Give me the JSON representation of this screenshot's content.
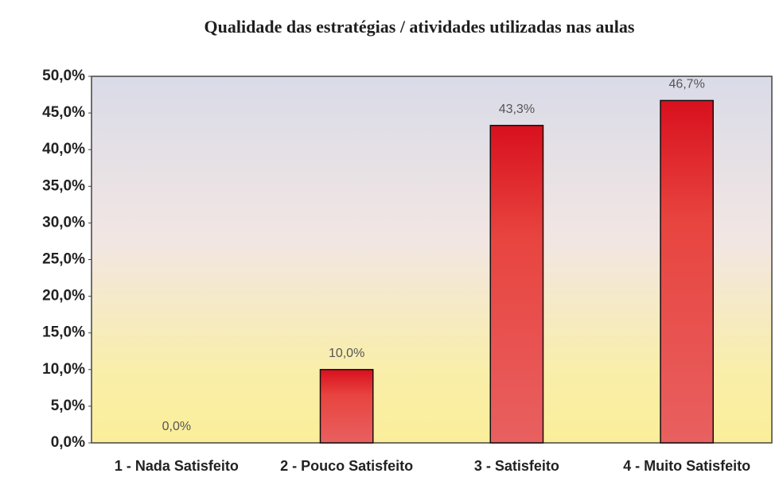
{
  "chart_data": {
    "type": "bar",
    "title": "Qualidade das estratégias / atividades utilizadas nas aulas",
    "categories": [
      "1 - Nada Satisfeito",
      "2 - Pouco Satisfeito",
      "3 - Satisfeito",
      "4 - Muito Satisfeito"
    ],
    "values": [
      0,
      10,
      43.3,
      46.7
    ],
    "value_labels": [
      "0,0%",
      "10,0%",
      "43,3%",
      "46,7%"
    ],
    "color": "#e3202c",
    "ylim": [
      0,
      50
    ],
    "yticks": [
      {
        "value": 0,
        "label": "0,0%"
      },
      {
        "value": 5,
        "label": "5,0%"
      },
      {
        "value": 10,
        "label": "10,0%"
      },
      {
        "value": 15,
        "label": "15,0%"
      },
      {
        "value": 20,
        "label": "20,0%"
      },
      {
        "value": 25,
        "label": "25,0%"
      },
      {
        "value": 30,
        "label": "30,0%"
      },
      {
        "value": 35,
        "label": "35,0%"
      },
      {
        "value": 40,
        "label": "40,0%"
      },
      {
        "value": 45,
        "label": "45,0%"
      },
      {
        "value": 50,
        "label": "50,0%"
      }
    ],
    "grid": false
  }
}
